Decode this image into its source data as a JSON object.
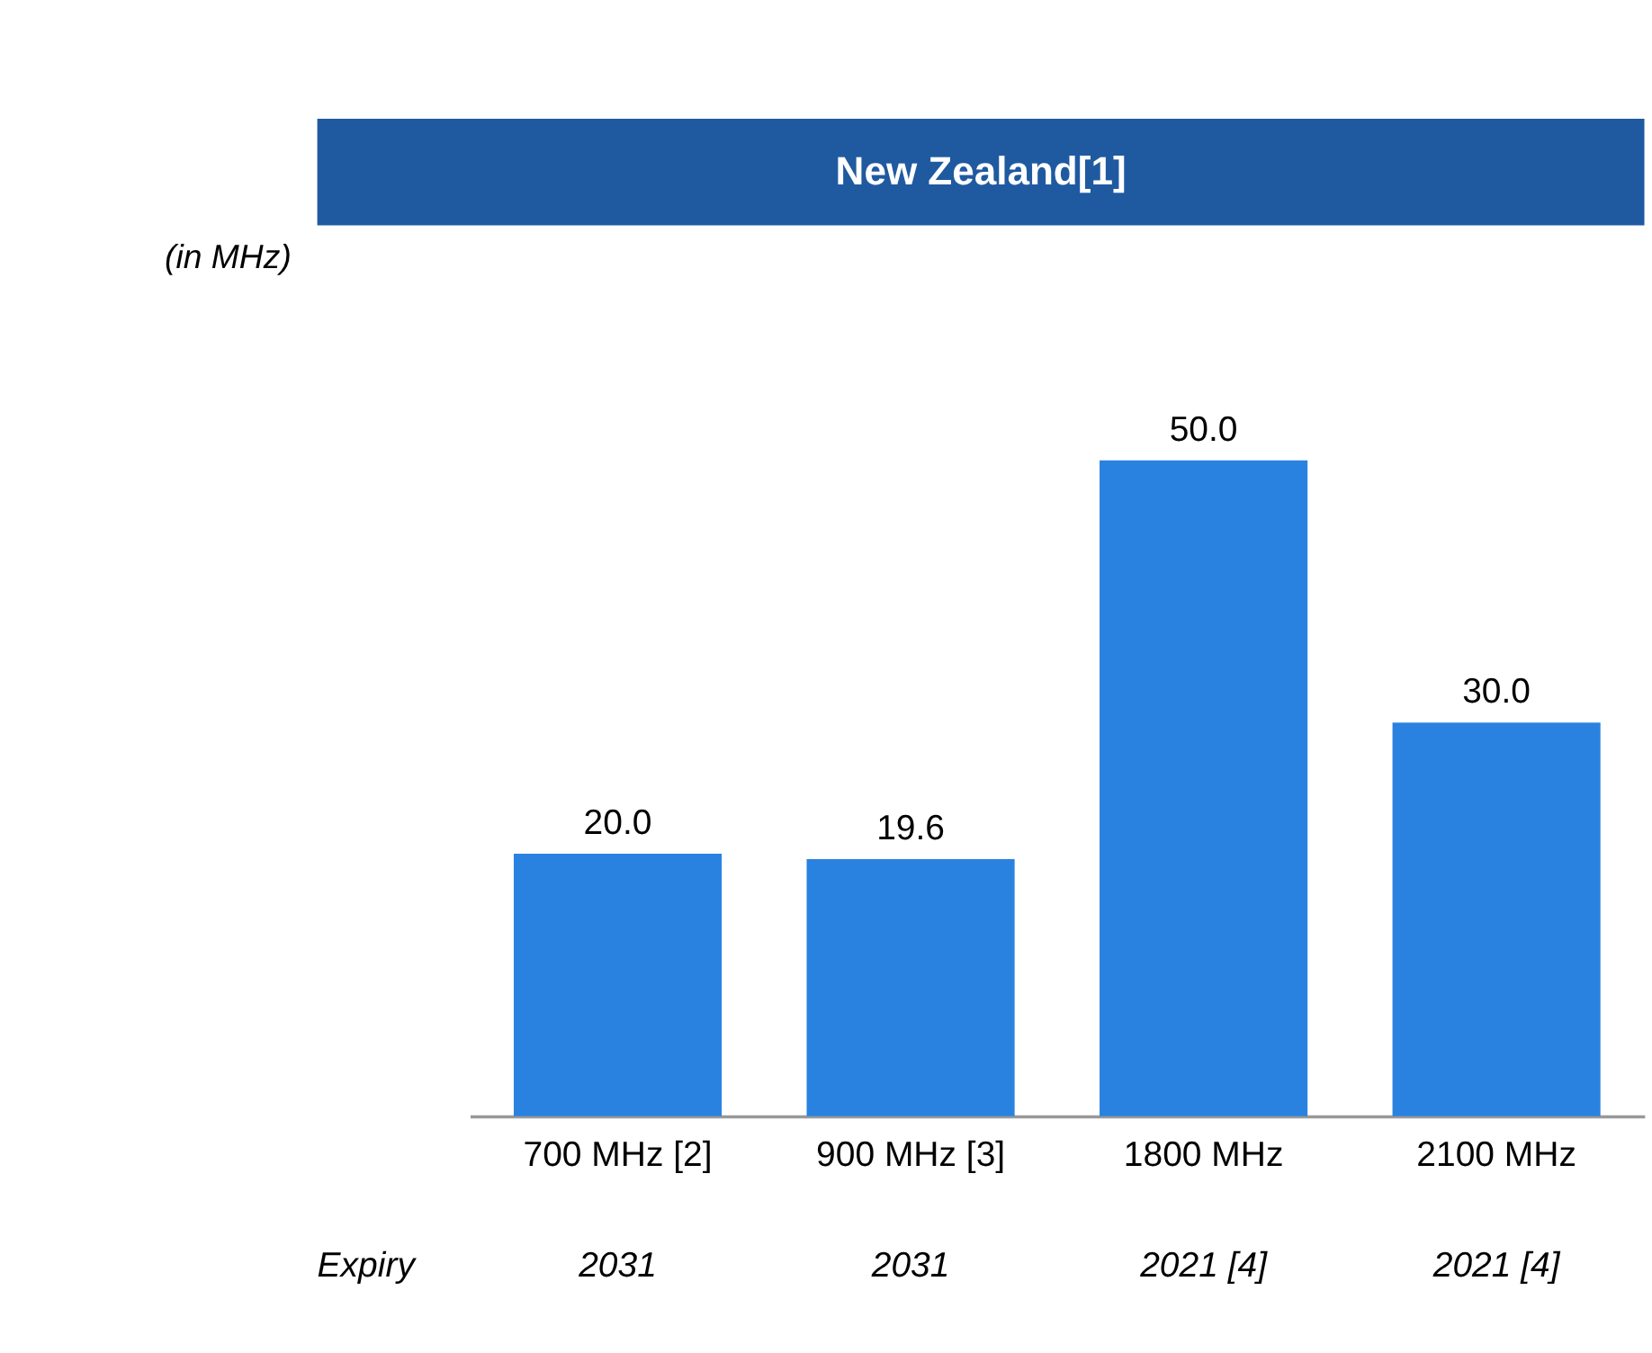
{
  "chart_data": {
    "type": "bar",
    "title": "New Zealand[1]",
    "subtitle": "(in MHz)",
    "categories": [
      "700 MHz [2]",
      "900 MHz [3]",
      "1800 MHz",
      "2100 MHz"
    ],
    "values": [
      20.0,
      19.6,
      50.0,
      30.0
    ],
    "color": "#2a82e0",
    "value_labels": [
      "20.0",
      "19.6",
      "50.0",
      "30.0"
    ],
    "annotations": [
      "Expiry",
      "2031",
      "2031",
      "2021 [4]",
      "2021 [4]"
    ]
  }
}
